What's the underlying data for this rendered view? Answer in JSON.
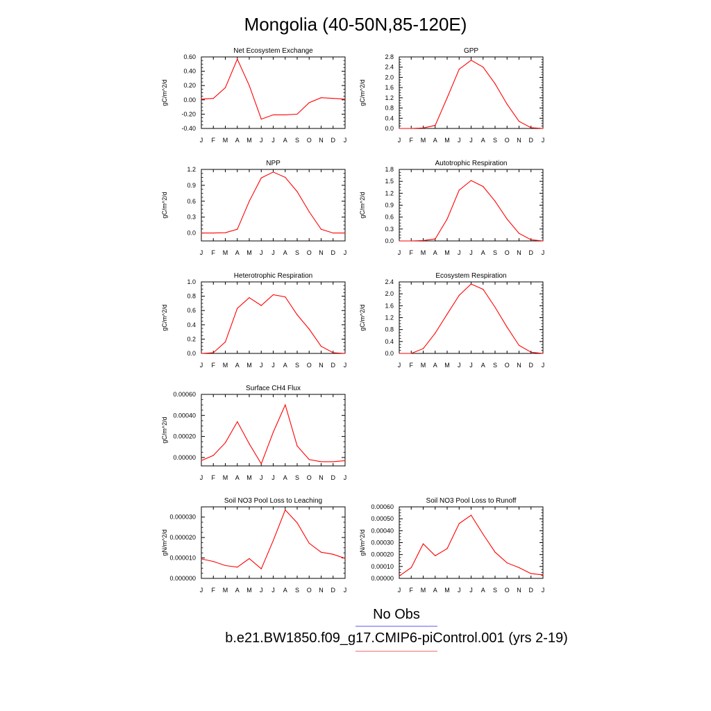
{
  "title": "Mongolia (40-50N,85-120E)",
  "months": [
    "J",
    "F",
    "M",
    "A",
    "M",
    "J",
    "J",
    "A",
    "S",
    "O",
    "N",
    "D",
    "J"
  ],
  "legend": {
    "obs_label": "No Obs",
    "model_label": "b.e21.BW1850.f09_g17.CMIP6-piControl.001 (yrs 2-19)",
    "obs_color": "#7b7bf0",
    "model_color": "#f08080"
  },
  "series_color": "#ff0000",
  "chart_data": [
    {
      "type": "line",
      "title": "Net Ecosystem Exchange",
      "ylabel": "gC/m^2/d",
      "x": [
        "J",
        "F",
        "M",
        "A",
        "M",
        "J",
        "J",
        "A",
        "S",
        "O",
        "N",
        "D",
        "J"
      ],
      "ylim": [
        -0.4,
        0.6
      ],
      "yticks": [
        -0.4,
        -0.2,
        0.0,
        0.2,
        0.4,
        0.6
      ],
      "ytick_labels": [
        "-0.40",
        "-0.20",
        "0.00",
        "0.20",
        "0.40",
        "0.60"
      ],
      "values": [
        0.01,
        0.02,
        0.17,
        0.57,
        0.2,
        -0.27,
        -0.21,
        -0.21,
        -0.2,
        -0.04,
        0.03,
        0.02,
        0.01
      ]
    },
    {
      "type": "line",
      "title": "GPP",
      "ylabel": "gC/m^2/d",
      "x": [
        "J",
        "F",
        "M",
        "A",
        "M",
        "J",
        "J",
        "A",
        "S",
        "O",
        "N",
        "D",
        "J"
      ],
      "ylim": [
        0.0,
        2.8
      ],
      "yticks": [
        0.0,
        0.4,
        0.8,
        1.2,
        1.6,
        2.0,
        2.4,
        2.8
      ],
      "ytick_labels": [
        "0.0",
        "0.4",
        "0.8",
        "1.2",
        "1.6",
        "2.0",
        "2.4",
        "2.8"
      ],
      "values": [
        0.0,
        0.0,
        0.02,
        0.12,
        1.2,
        2.32,
        2.67,
        2.4,
        1.75,
        0.95,
        0.28,
        0.03,
        0.0
      ]
    },
    {
      "type": "line",
      "title": "NPP",
      "ylabel": "gC/m^2/d",
      "x": [
        "J",
        "F",
        "M",
        "A",
        "M",
        "J",
        "J",
        "A",
        "S",
        "O",
        "N",
        "D",
        "J"
      ],
      "ylim": [
        -0.15,
        1.2
      ],
      "yticks": [
        0.0,
        0.3,
        0.6,
        0.9,
        1.2
      ],
      "ytick_labels": [
        "0.0",
        "0.3",
        "0.6",
        "0.9",
        "1.2"
      ],
      "values": [
        0.0,
        0.0,
        0.005,
        0.07,
        0.6,
        1.04,
        1.15,
        1.05,
        0.78,
        0.4,
        0.07,
        0.0,
        0.0
      ]
    },
    {
      "type": "line",
      "title": "Autotrophic Respiration",
      "ylabel": "gC/m^2/d",
      "x": [
        "J",
        "F",
        "M",
        "A",
        "M",
        "J",
        "J",
        "A",
        "S",
        "O",
        "N",
        "D",
        "J"
      ],
      "ylim": [
        0.0,
        1.8
      ],
      "yticks": [
        0.0,
        0.3,
        0.6,
        0.9,
        1.2,
        1.5,
        1.8
      ],
      "ytick_labels": [
        "0.0",
        "0.3",
        "0.6",
        "0.9",
        "1.2",
        "1.5",
        "1.8"
      ],
      "values": [
        0.0,
        0.0,
        0.01,
        0.05,
        0.55,
        1.28,
        1.52,
        1.37,
        1.0,
        0.55,
        0.19,
        0.03,
        0.0
      ]
    },
    {
      "type": "line",
      "title": "Heterotrophic Respiration",
      "ylabel": "gC/m^2/d",
      "x": [
        "J",
        "F",
        "M",
        "A",
        "M",
        "J",
        "J",
        "A",
        "S",
        "O",
        "N",
        "D",
        "J"
      ],
      "ylim": [
        0.0,
        1.0
      ],
      "yticks": [
        0.0,
        0.2,
        0.4,
        0.6,
        0.8,
        1.0
      ],
      "ytick_labels": [
        "0.0",
        "0.2",
        "0.4",
        "0.6",
        "0.8",
        "1.0"
      ],
      "values": [
        0.0,
        0.01,
        0.16,
        0.63,
        0.78,
        0.67,
        0.82,
        0.79,
        0.54,
        0.34,
        0.1,
        0.01,
        0.0
      ]
    },
    {
      "type": "line",
      "title": "Ecosystem Respiration",
      "ylabel": "gC/m^2/d",
      "x": [
        "J",
        "F",
        "M",
        "A",
        "M",
        "J",
        "J",
        "A",
        "S",
        "O",
        "N",
        "D",
        "J"
      ],
      "ylim": [
        0.0,
        2.4
      ],
      "yticks": [
        0.0,
        0.4,
        0.8,
        1.2,
        1.6,
        2.0,
        2.4
      ],
      "ytick_labels": [
        "0.0",
        "0.4",
        "0.8",
        "1.2",
        "1.6",
        "2.0",
        "2.4"
      ],
      "values": [
        0.0,
        0.0,
        0.16,
        0.68,
        1.32,
        1.95,
        2.33,
        2.15,
        1.55,
        0.88,
        0.27,
        0.04,
        0.0
      ]
    },
    {
      "type": "line",
      "title": "Surface CH4 Flux",
      "ylabel": "gC/m^2/d",
      "x": [
        "J",
        "F",
        "M",
        "A",
        "M",
        "J",
        "J",
        "A",
        "S",
        "O",
        "N",
        "D",
        "J"
      ],
      "ylim": [
        -8e-05,
        0.0006
      ],
      "yticks": [
        0.0,
        0.0002,
        0.0004,
        0.0006
      ],
      "ytick_labels": [
        "0.00000",
        "0.00020",
        "0.00040",
        "0.00060"
      ],
      "values": [
        -3e-05,
        2e-05,
        0.00014,
        0.00034,
        0.00013,
        -6e-05,
        0.00024,
        0.0005,
        0.00011,
        -2e-05,
        -4e-05,
        -4e-05,
        -3e-05
      ]
    },
    {
      "type": "line",
      "title": "Soil NO3 Pool Loss to Leaching",
      "ylabel": "gN/m^2/d",
      "x": [
        "J",
        "F",
        "M",
        "A",
        "M",
        "J",
        "J",
        "A",
        "S",
        "O",
        "N",
        "D",
        "J"
      ],
      "ylim": [
        0.0,
        3.5e-05
      ],
      "yticks": [
        0.0,
        1e-05,
        2e-05,
        3e-05
      ],
      "ytick_labels": [
        "0.000000",
        "0.000010",
        "0.000020",
        "0.000030"
      ],
      "values": [
        9.5e-06,
        8.3e-06,
        6.3e-06,
        5.5e-06,
        9.7e-06,
        4.7e-06,
        1.85e-05,
        3.35e-05,
        2.72e-05,
        1.72e-05,
        1.28e-05,
        1.18e-05,
        9.8e-06
      ]
    },
    {
      "type": "line",
      "title": "Soil NO3 Pool Loss to Runoff",
      "ylabel": "gN/m^2/d",
      "x": [
        "J",
        "F",
        "M",
        "A",
        "M",
        "J",
        "J",
        "A",
        "S",
        "O",
        "N",
        "D",
        "J"
      ],
      "ylim": [
        0.0,
        0.0006
      ],
      "yticks": [
        0.0,
        0.0001,
        0.0002,
        0.0003,
        0.0004,
        0.0005,
        0.0006
      ],
      "ytick_labels": [
        "0.00000",
        "0.00010",
        "0.00020",
        "0.00030",
        "0.00040",
        "0.00050",
        "0.00060"
      ],
      "values": [
        2e-05,
        9e-05,
        0.00029,
        0.00019,
        0.00025,
        0.00046,
        0.00053,
        0.00037,
        0.00022,
        0.00013,
        9e-05,
        4e-05,
        3e-05
      ]
    }
  ]
}
